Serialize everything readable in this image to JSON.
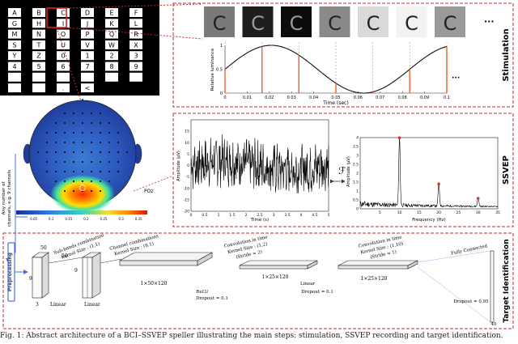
{
  "speller": {
    "keys": [
      "A",
      "B",
      "C",
      "D",
      "E",
      "F",
      "G",
      "H",
      "I",
      "J",
      "K",
      "L",
      "M",
      "N",
      "O",
      "P",
      "Q",
      "R",
      "S",
      "T",
      "U",
      "V",
      "W",
      "X",
      "Y",
      "Z",
      "0",
      "1",
      "2",
      "3",
      "4",
      "5",
      "6",
      "7",
      "8",
      "9",
      "",
      "",
      "",
      "",
      "",
      "",
      "",
      "",
      ".",
      "<"
    ]
  },
  "stimulation": {
    "section_label": "Stimulation",
    "frame_letters": [
      "C",
      "C",
      "C",
      "C",
      "C",
      "C",
      "C"
    ],
    "frame_shades": [
      "#7a7a7a",
      "#1e1e1e",
      "#0c0c0c",
      "#8a8a8a",
      "#d9d9d9",
      "#f2f2f2",
      "#9a9a9a"
    ],
    "ellipsis": "···",
    "ylabel": "Relative luminance",
    "xlabel": "Time (sec)",
    "xticks": [
      "0",
      "0.01",
      "0.02",
      "0.03",
      "0.04",
      "0.05",
      "0.06",
      "0.07",
      "0.08",
      "0.09",
      "0.1"
    ],
    "yticks": [
      "0",
      "0.5",
      "1"
    ],
    "sample_times": [
      0,
      0.0167,
      0.0333,
      0.05,
      0.0667,
      0.0833,
      0.1
    ]
  },
  "ssvep": {
    "section_label": "SSVEP",
    "time_xlabel": "Time (s)",
    "time_ylabel": "Amplitude (μV)",
    "time_xticks": [
      "0",
      "0.5",
      "1",
      "1.5",
      "2",
      "2.5",
      "3",
      "3.5",
      "4",
      "4.5",
      "5"
    ],
    "time_yticks": [
      "-20",
      "-15",
      "-10",
      "-5",
      "0",
      "5",
      "10",
      "15"
    ],
    "fourier_symbol": "ℱ",
    "freq_xlabel": "Frequency (Hz)",
    "freq_ylabel": "Amplitude (μV)",
    "freq_xticks": [
      "5",
      "10",
      "15",
      "20",
      "25",
      "30",
      "35"
    ],
    "freq_yticks": [
      "0",
      "0.5",
      "1",
      "1.5",
      "2",
      "2.5",
      "3",
      "3.5",
      "4"
    ],
    "peak_freqs": [
      10,
      20,
      30
    ]
  },
  "scalp": {
    "channel_label": "POz",
    "colorbar_ticks": [
      "0.05",
      "0.1",
      "0.15",
      "0.2",
      "0.25",
      "0.3",
      "0.35"
    ],
    "side_note_1": "Any number of",
    "side_note_2": "channels, e.g. 9 channels"
  },
  "identification": {
    "section_label": "Target Identification",
    "preprocessing": "Preprocessing",
    "input_dims": [
      "9",
      "3",
      "50"
    ],
    "linear1": "Linear",
    "conv1_title": "Sub-bands combination",
    "conv1_kernel": "Kernel Size : (1,1)",
    "layer2_dims": [
      "9",
      "50"
    ],
    "linear2": "Linear",
    "conv2_title": "Channel combinations",
    "conv2_kernel": "Kernel Size : (9,1)",
    "block1_dims": "1×50×120",
    "relu": "ReLU",
    "dropout1": "Dropout = 0.1",
    "conv3_title": "Convolution in time",
    "conv3_kernel": "Kernel Size : (1,2)",
    "conv3_stride": "(Stride = 2)",
    "block2_dims": "1×25×120",
    "linear3": "Linear",
    "dropout2": "Dropout = 0.1",
    "conv4_title": "Convolution in time",
    "conv4_kernel": "Kernel Size : (1,10)",
    "conv4_stride": "(Stride = 1)",
    "block3_dims": "1×25×120",
    "fc_label": "Fully Connected",
    "dropout3": "Dropout = 0.95",
    "output_dim": "40"
  },
  "caption": "Fig. 1: Abstract architecture of a BCI–SSVEP speller illustrating the main steps: stimulation, SSVEP recording and target identification."
}
